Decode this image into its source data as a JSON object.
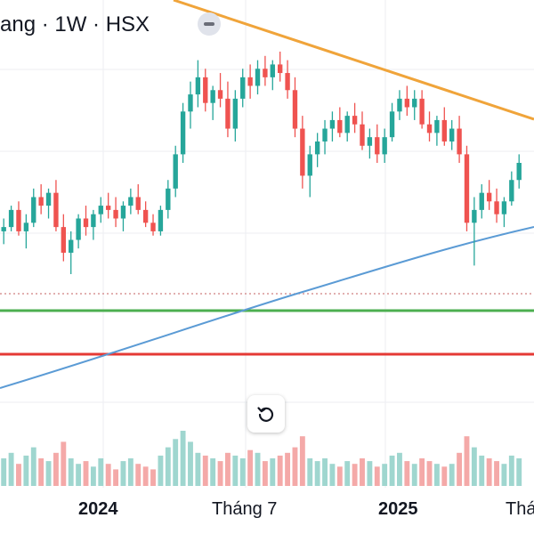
{
  "header": {
    "symbol_title": "ang · 1W · HSX",
    "collapse_icon": "minus-icon"
  },
  "toolbar": {
    "reset_icon": "rotate-ccw-icon"
  },
  "x_axis": {
    "labels": [
      {
        "text": "2024",
        "bold": true
      },
      {
        "text": "Tháng 7",
        "bold": false
      },
      {
        "text": "2025",
        "bold": true
      },
      {
        "text": "Thá",
        "bold": false
      }
    ]
  },
  "colors": {
    "up": "#26a69a",
    "down": "#ef5350",
    "volume_up": "#9fd6cf",
    "volume_down": "#f4a9a8",
    "trendline": "#f0a43a",
    "moving_average": "#5b9bd5",
    "support_green": "#4caf50",
    "support_red": "#e53935",
    "dotted_level": "#d08080",
    "grid": "#eceef2"
  },
  "chart_data": {
    "type": "candlestick",
    "timeframe": "1W",
    "exchange": "HSX",
    "x_tick_labels": [
      "2024",
      "Tháng 7",
      "2025",
      "Thá"
    ],
    "y_axis_visible": false,
    "grid": true,
    "overlays": [
      "descending trendline",
      "moving average",
      "green horizontal level",
      "red horizontal level",
      "dotted horizontal level"
    ],
    "candles_note": "relative price levels read from chart (no y scale printed)",
    "candles": [
      [
        100,
        103,
        97,
        101
      ],
      [
        101,
        106,
        100,
        105
      ],
      [
        105,
        107,
        99,
        100
      ],
      [
        100,
        104,
        96,
        102
      ],
      [
        102,
        110,
        101,
        108
      ],
      [
        108,
        111,
        104,
        106
      ],
      [
        106,
        110,
        103,
        109
      ],
      [
        109,
        112,
        100,
        101
      ],
      [
        101,
        104,
        93,
        95
      ],
      [
        95,
        100,
        90,
        98
      ],
      [
        98,
        104,
        96,
        103
      ],
      [
        103,
        106,
        99,
        101
      ],
      [
        101,
        105,
        98,
        104
      ],
      [
        104,
        108,
        102,
        106
      ],
      [
        106,
        109,
        103,
        105
      ],
      [
        105,
        108,
        101,
        103
      ],
      [
        103,
        107,
        100,
        106
      ],
      [
        106,
        110,
        104,
        108
      ],
      [
        108,
        111,
        104,
        105
      ],
      [
        105,
        107,
        101,
        102
      ],
      [
        102,
        104,
        99,
        100
      ],
      [
        100,
        106,
        99,
        105
      ],
      [
        105,
        112,
        103,
        110
      ],
      [
        110,
        120,
        108,
        118
      ],
      [
        118,
        130,
        116,
        128
      ],
      [
        128,
        135,
        124,
        132
      ],
      [
        132,
        140,
        129,
        136
      ],
      [
        136,
        138,
        128,
        130
      ],
      [
        130,
        134,
        126,
        133
      ],
      [
        133,
        137,
        129,
        131
      ],
      [
        131,
        135,
        122,
        124
      ],
      [
        124,
        133,
        121,
        131
      ],
      [
        131,
        138,
        129,
        136
      ],
      [
        136,
        139,
        131,
        134
      ],
      [
        134,
        140,
        132,
        138
      ],
      [
        138,
        141,
        134,
        136
      ],
      [
        136,
        140,
        133,
        139
      ],
      [
        139,
        142,
        135,
        137
      ],
      [
        137,
        140,
        131,
        133
      ],
      [
        133,
        136,
        122,
        124
      ],
      [
        124,
        127,
        110,
        113
      ],
      [
        113,
        120,
        108,
        118
      ],
      [
        118,
        123,
        115,
        121
      ],
      [
        121,
        126,
        118,
        124
      ],
      [
        124,
        128,
        121,
        126
      ],
      [
        126,
        129,
        122,
        123
      ],
      [
        123,
        128,
        121,
        127
      ],
      [
        127,
        130,
        123,
        125
      ],
      [
        125,
        128,
        119,
        120
      ],
      [
        120,
        124,
        117,
        122
      ],
      [
        122,
        125,
        116,
        118
      ],
      [
        118,
        124,
        116,
        122
      ],
      [
        122,
        130,
        121,
        128
      ],
      [
        128,
        133,
        126,
        131
      ],
      [
        131,
        134,
        127,
        129
      ],
      [
        129,
        133,
        126,
        131
      ],
      [
        131,
        133,
        124,
        125
      ],
      [
        125,
        128,
        121,
        123
      ],
      [
        123,
        127,
        120,
        126
      ],
      [
        126,
        129,
        120,
        121
      ],
      [
        121,
        126,
        119,
        124
      ],
      [
        124,
        127,
        116,
        118
      ],
      [
        118,
        120,
        100,
        102
      ],
      [
        102,
        108,
        92,
        105
      ],
      [
        105,
        111,
        103,
        109
      ],
      [
        109,
        112,
        105,
        107
      ],
      [
        107,
        110,
        102,
        104
      ],
      [
        104,
        108,
        101,
        107
      ],
      [
        107,
        114,
        106,
        112
      ],
      [
        112,
        118,
        110,
        116
      ]
    ],
    "volume": [
      0.5,
      0.6,
      0.4,
      0.55,
      0.7,
      0.5,
      0.45,
      0.6,
      0.8,
      0.5,
      0.4,
      0.45,
      0.35,
      0.5,
      0.4,
      0.3,
      0.45,
      0.5,
      0.4,
      0.35,
      0.3,
      0.55,
      0.7,
      0.85,
      1.0,
      0.8,
      0.6,
      0.55,
      0.5,
      0.45,
      0.6,
      0.55,
      0.5,
      0.65,
      0.6,
      0.45,
      0.5,
      0.55,
      0.6,
      0.7,
      0.9,
      0.5,
      0.45,
      0.5,
      0.4,
      0.35,
      0.45,
      0.4,
      0.5,
      0.45,
      0.35,
      0.4,
      0.55,
      0.6,
      0.45,
      0.4,
      0.5,
      0.45,
      0.4,
      0.35,
      0.4,
      0.6,
      0.9,
      0.7,
      0.55,
      0.5,
      0.45,
      0.4,
      0.55,
      0.5
    ]
  }
}
